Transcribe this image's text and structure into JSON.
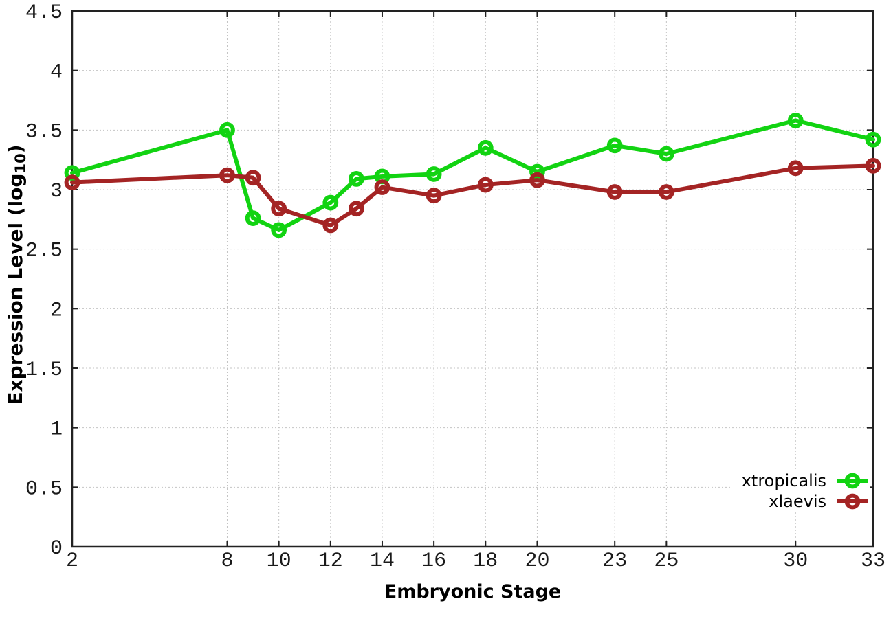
{
  "chart_data": {
    "type": "line",
    "title": "",
    "xlabel": "Embryonic Stage",
    "ylabel": {
      "prefix": "Expression Level (log",
      "sub": "10",
      "suffix": ")"
    },
    "x": [
      2,
      8,
      9,
      10,
      12,
      13,
      14,
      16,
      18,
      20,
      23,
      25,
      30,
      33
    ],
    "xlim": [
      2,
      33
    ],
    "ylim": [
      0,
      4.5
    ],
    "x_tick_values": [
      2,
      8,
      10,
      12,
      14,
      16,
      18,
      20,
      23,
      25,
      30,
      33
    ],
    "x_tick_labels": [
      "2",
      "8",
      "10",
      "12",
      "14",
      "16",
      "18",
      "20",
      "23",
      "25",
      "30",
      "33"
    ],
    "y_tick_values": [
      0,
      0.5,
      1,
      1.5,
      2,
      2.5,
      3,
      3.5,
      4,
      4.5
    ],
    "y_tick_labels": [
      "0",
      "0.5",
      "1",
      "1.5",
      "2",
      "2.5",
      "3",
      "3.5",
      "4",
      "4.5"
    ],
    "grid": true,
    "legend_position": "bottom-right",
    "series": [
      {
        "name": "xtropicalis",
        "color": "#12d312",
        "values": [
          3.14,
          3.5,
          2.76,
          2.66,
          2.89,
          3.09,
          3.11,
          3.13,
          3.35,
          3.15,
          3.37,
          3.3,
          3.58,
          3.42
        ]
      },
      {
        "name": "xlaevis",
        "color": "#a42424",
        "values": [
          3.06,
          3.12,
          3.1,
          2.84,
          2.7,
          2.84,
          3.02,
          2.95,
          3.04,
          3.08,
          2.98,
          2.98,
          3.18,
          3.2
        ]
      }
    ],
    "colors": {
      "grid": "#c4c4c4",
      "border": "#222222",
      "tick_text": "#1a1a1a"
    }
  }
}
